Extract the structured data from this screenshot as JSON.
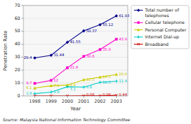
{
  "chart_data": {
    "type": "line",
    "x": [
      1998,
      1999,
      2000,
      2001,
      2002,
      2003
    ],
    "xlim": [
      1997.3,
      2003.7
    ],
    "xticks": [
      1998,
      1999,
      2000,
      2001,
      2002,
      2003
    ],
    "ylim": [
      0,
      70
    ],
    "yticks": [
      0,
      10,
      20,
      30,
      40,
      50,
      60,
      70
    ],
    "xlabel": "Year",
    "ylabel": "Penetration Rate",
    "source": "Source: Malaysia National Information Technology Committee",
    "grid": true,
    "legend": "right",
    "data_labels": true,
    "series": [
      {
        "name": "Total number of\ntelephones",
        "color": "#00008B",
        "marker": "diamond",
        "values": [
          29.4,
          31.44,
          41.55,
          50.37,
          55.12,
          61.93
        ]
      },
      {
        "name": "Cellular telephone",
        "color": "#FF00CC",
        "marker": "square",
        "values": [
          9.7,
          12.0,
          21.8,
          30.6,
          35.9,
          43.9
        ]
      },
      {
        "name": "Personal Computer",
        "color": "#CCCC00",
        "marker": "triangle",
        "values": [
          6.1,
          7.9,
          8.4,
          12.5,
          14.5,
          16.6
        ]
      },
      {
        "name": "Internet Dial-up",
        "color": "#00CCCC",
        "marker": "plus",
        "values": [
          1.8,
          2.9,
          7.1,
          6.8,
          10.5,
          11.4
        ]
      },
      {
        "name": "Broadband",
        "color": "#CC0000",
        "marker": "x",
        "values": [
          0.0,
          0.0,
          0.0,
          0.08,
          0.08,
          0.44
        ],
        "value_labels": [
          null,
          null,
          null,
          "0.08",
          "0.08",
          "0.44"
        ]
      }
    ]
  }
}
